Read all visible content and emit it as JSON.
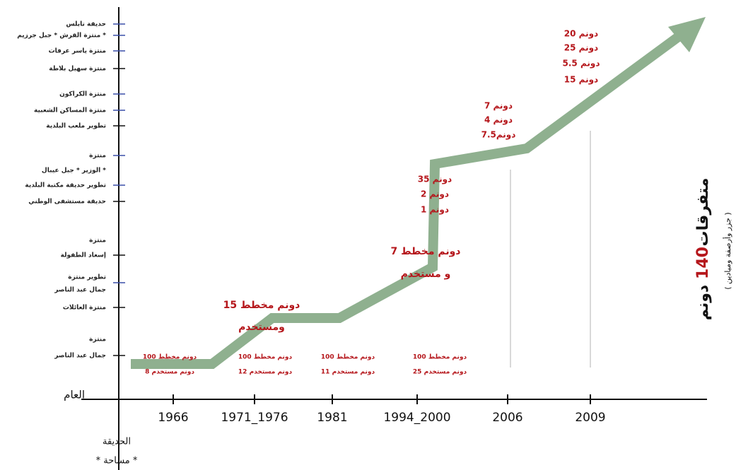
{
  "axis": {
    "year_label": "العام",
    "area_label": [
      "الحديقة",
      "* مساحة *"
    ]
  },
  "years": [
    "1966",
    "1971_1976",
    "1981",
    "1994_2000",
    "2006",
    "2009"
  ],
  "projects": [
    "حديقة نابلس",
    "منتزة القرش * جبل جرزيم *",
    "منتزة ياسر عرفات",
    "منتزة سهيل بلاطة",
    "منتزة الكراكون",
    "منتزة المساكن الشعبية",
    "تطوير ملعب البلدية",
    "منتزة",
    "الوزير * جبل عيبال *",
    "تطوير حديقة مكتبة البلدية",
    "حديقة مستشفى الوطني",
    "منتزة",
    "إسعاد الطفولة",
    "تطوير منتزة",
    "جمال عبد الناصر",
    "منتزة العائلات",
    "منتزة",
    "جمال عبد الناصر"
  ],
  "bottom_notes": [
    {
      "planned": "100 دونم مخطط",
      "used": "8 دونم مستخدم"
    },
    {
      "planned": "100 دونم مخطط",
      "used": "12 دونم مستخدم"
    },
    {
      "planned": "100 دونم مخطط",
      "used": "11 دونم مستخدم"
    },
    {
      "planned": "100 دونم مخطط",
      "used": "25 دونم مستخدم"
    }
  ],
  "annotations": [
    [
      "15 دونم مخطط",
      "ومستخدم"
    ],
    [
      "7 دونم مخطط",
      "و مستخدم"
    ],
    [
      "35 دونم",
      "2 دونم",
      "1 دونم"
    ],
    [
      "7 دونم",
      "4 دونم",
      "7.5دونم"
    ],
    [
      "20 دونم",
      "25 دونم",
      "5.5 دونم",
      "15 دونم"
    ]
  ],
  "side": {
    "title": [
      "متفرقات",
      "140",
      "دونم"
    ],
    "subtitle": "( جزر وأرصفة وميادين )"
  }
}
